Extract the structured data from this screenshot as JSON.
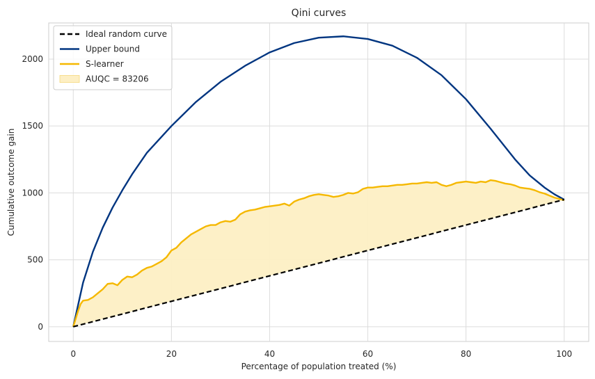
{
  "chart_data": {
    "type": "line",
    "title": "Qini curves",
    "xlabel": "Percentage of population treated (%)",
    "ylabel": "Cumulative outcome gain",
    "xlim": [
      -5,
      105
    ],
    "ylim": [
      -110,
      2270
    ],
    "xticks": [
      0,
      20,
      40,
      60,
      80,
      100
    ],
    "yticks": [
      0,
      500,
      1000,
      1500,
      2000
    ],
    "grid": true,
    "legend_position": "top-left",
    "series": [
      {
        "name": "Ideal random curve",
        "style": "dashed",
        "color": "#000000",
        "x": [
          0,
          100
        ],
        "y": [
          0,
          950
        ]
      },
      {
        "name": "Upper bound",
        "style": "solid",
        "color": "#003580",
        "x": [
          0,
          2,
          4,
          6,
          8,
          10,
          12,
          15,
          20,
          25,
          30,
          35,
          40,
          45,
          50,
          55,
          60,
          65,
          70,
          75,
          80,
          85,
          90,
          93,
          96,
          98,
          100
        ],
        "y": [
          0,
          330,
          560,
          740,
          890,
          1020,
          1140,
          1300,
          1500,
          1680,
          1830,
          1950,
          2050,
          2120,
          2160,
          2170,
          2150,
          2100,
          2010,
          1880,
          1700,
          1480,
          1250,
          1130,
          1040,
          990,
          950
        ]
      },
      {
        "name": "S-learner",
        "style": "solid",
        "color": "#f5b800",
        "fill": "#fdefc4",
        "x": [
          0,
          1,
          1.5,
          2,
          3,
          4,
          5,
          6,
          7,
          8,
          9,
          10,
          11,
          12,
          13,
          14,
          15,
          16,
          17,
          18,
          19,
          20,
          21,
          22,
          23,
          24,
          25,
          26,
          27,
          28,
          29,
          30,
          31,
          32,
          33,
          34,
          35,
          36,
          37,
          38,
          39,
          40,
          41,
          42,
          43,
          44,
          45,
          46,
          47,
          48,
          49,
          50,
          51,
          52,
          53,
          54,
          55,
          56,
          57,
          58,
          59,
          60,
          61,
          62,
          63,
          64,
          65,
          66,
          67,
          68,
          69,
          70,
          71,
          72,
          73,
          74,
          75,
          76,
          77,
          78,
          79,
          80,
          81,
          82,
          83,
          84,
          85,
          86,
          87,
          88,
          89,
          90,
          91,
          92,
          93,
          94,
          95,
          96,
          97,
          98,
          99,
          100
        ],
        "y": [
          0,
          120,
          170,
          195,
          200,
          220,
          250,
          280,
          320,
          325,
          310,
          350,
          375,
          370,
          390,
          420,
          440,
          450,
          470,
          490,
          520,
          570,
          590,
          630,
          660,
          690,
          710,
          730,
          750,
          760,
          760,
          780,
          790,
          785,
          800,
          840,
          860,
          870,
          875,
          885,
          895,
          900,
          905,
          910,
          920,
          905,
          935,
          950,
          960,
          975,
          985,
          990,
          985,
          980,
          970,
          975,
          985,
          1000,
          995,
          1005,
          1030,
          1040,
          1040,
          1045,
          1050,
          1050,
          1055,
          1060,
          1060,
          1065,
          1070,
          1070,
          1075,
          1080,
          1075,
          1080,
          1060,
          1050,
          1060,
          1075,
          1080,
          1085,
          1080,
          1075,
          1085,
          1080,
          1095,
          1090,
          1080,
          1070,
          1065,
          1055,
          1040,
          1035,
          1030,
          1020,
          1005,
          995,
          980,
          965,
          955,
          945
        ]
      }
    ],
    "legend": [
      {
        "label": "Ideal random curve",
        "kind": "dashed-line",
        "color": "#000000"
      },
      {
        "label": "Upper bound",
        "kind": "line",
        "color": "#003580"
      },
      {
        "label": "S-learner",
        "kind": "line",
        "color": "#f5b800"
      },
      {
        "label": "AUQC = 83206",
        "kind": "patch",
        "color": "#fdefc4"
      }
    ]
  }
}
